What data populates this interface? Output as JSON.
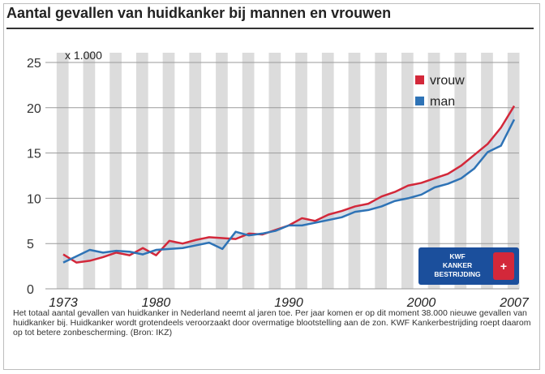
{
  "title": "Aantal gevallen van huidkanker bij mannen en vrouwen",
  "caption": "Het totaal aantal gevallen van huidkanker in Nederland neemt al jaren toe. Per jaar komen er op dit moment 38.000 nieuwe gevallen van huidkanker bij. Huidkanker wordt grotendeels veroorzaakt door overmatige blootstelling aan de zon. KWF Kankerbestrijding roept daarom op tot betere zonbescherming. (Bron: IKZ)",
  "logo": {
    "lines": [
      "KWF",
      "KANKER",
      "BESTRIJDING"
    ],
    "sign": "+"
  },
  "colors": {
    "vrouw": "#d3283a",
    "man": "#2e73b6",
    "stripe": "#dcdcdc",
    "logo_bg": "#1b4f9c"
  },
  "chart_data": {
    "type": "line",
    "title": "Aantal gevallen van huidkanker bij mannen en vrouwen",
    "unit_label": "x 1.000",
    "xlabel": "",
    "ylabel": "",
    "xlim": [
      1973,
      2007
    ],
    "ylim": [
      0,
      25
    ],
    "yticks": [
      0,
      5,
      10,
      15,
      20,
      25
    ],
    "xtick_labels": [
      "1973",
      "1980",
      "1990",
      "2000",
      "2007"
    ],
    "grid": "alternating vertical year stripes",
    "legend_position": "top-right",
    "x": [
      1973,
      1974,
      1975,
      1976,
      1977,
      1978,
      1979,
      1980,
      1981,
      1982,
      1983,
      1984,
      1985,
      1986,
      1987,
      1988,
      1989,
      1990,
      1991,
      1992,
      1993,
      1994,
      1995,
      1996,
      1997,
      1998,
      1999,
      2000,
      2001,
      2002,
      2003,
      2004,
      2005,
      2006,
      2007
    ],
    "series": [
      {
        "name": "vrouw",
        "values": [
          3.8,
          2.9,
          3.1,
          3.5,
          4.0,
          3.7,
          4.5,
          3.7,
          5.3,
          5.0,
          5.4,
          5.7,
          5.6,
          5.5,
          6.1,
          6.0,
          6.5,
          7.0,
          7.8,
          7.5,
          8.2,
          8.6,
          9.1,
          9.4,
          10.2,
          10.7,
          11.4,
          11.7,
          12.2,
          12.7,
          13.6,
          14.8,
          16.0,
          17.8,
          20.2
        ]
      },
      {
        "name": "man",
        "values": [
          2.9,
          3.6,
          4.3,
          4.0,
          4.2,
          4.1,
          3.8,
          4.3,
          4.4,
          4.5,
          4.8,
          5.1,
          4.4,
          6.3,
          5.9,
          6.1,
          6.4,
          7.0,
          7.0,
          7.3,
          7.6,
          7.9,
          8.5,
          8.7,
          9.1,
          9.7,
          10.0,
          10.4,
          11.2,
          11.6,
          12.2,
          13.3,
          15.1,
          15.8,
          18.7
        ]
      }
    ]
  }
}
